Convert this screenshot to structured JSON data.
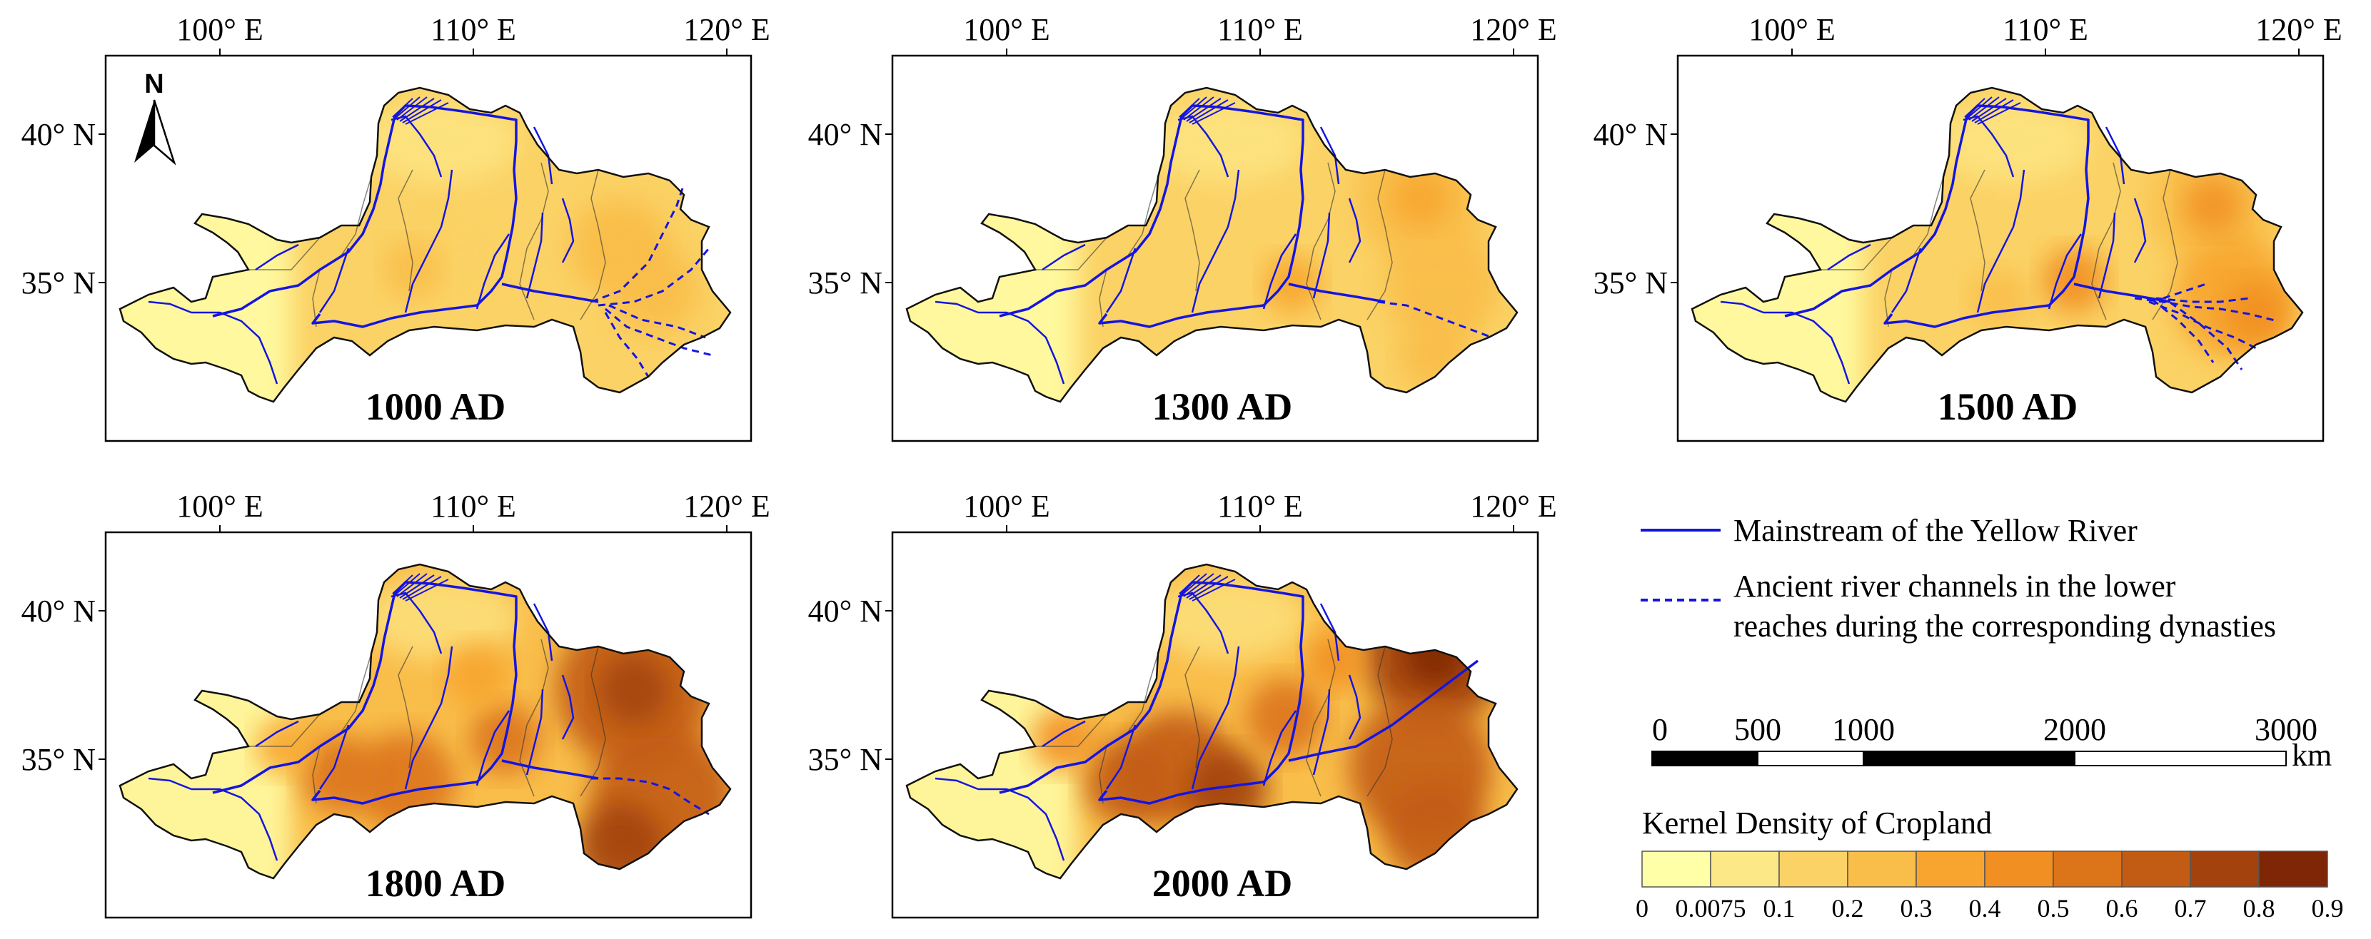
{
  "panels": [
    {
      "year": "1000 AD",
      "fill_level": 2,
      "hot_level": 3,
      "north_arrow": true,
      "ancient_channels": "multi-1000"
    },
    {
      "year": "1300 AD",
      "fill_level": 2,
      "hot_level": 4,
      "north_arrow": false,
      "ancient_channels": "single-1300"
    },
    {
      "year": "1500 AD",
      "fill_level": 2,
      "hot_level": 5,
      "north_arrow": false,
      "ancient_channels": "multi-1500"
    },
    {
      "year": "1800 AD",
      "fill_level": 3,
      "hot_level": 8,
      "north_arrow": false,
      "ancient_channels": "single-1800"
    },
    {
      "year": "2000 AD",
      "fill_level": 3,
      "hot_level": 9,
      "north_arrow": false,
      "ancient_channels": "none"
    }
  ],
  "axes": {
    "longitude_labels": [
      "100° E",
      "110° E",
      "120° E"
    ],
    "latitude_labels": [
      "40° N",
      "35° N"
    ],
    "north_label": "N"
  },
  "legend": {
    "mainstream_label": "Mainstream of the Yellow River",
    "ancient_label_line1": "Ancient river channels in the lower",
    "ancient_label_line2": "reaches during the corresponding dynasties",
    "river_color": "#1515e0"
  },
  "scale_bar": {
    "unit": "km",
    "ticks": [
      "0",
      "500",
      "1000",
      "2000",
      "3000"
    ]
  },
  "density_legend": {
    "title": "Kernel Density of Cropland",
    "ticks": [
      "0",
      "0.0075",
      "0.1",
      "0.2",
      "0.3",
      "0.4",
      "0.5",
      "0.6",
      "0.7",
      "0.8",
      "0.9"
    ],
    "colors": [
      "#ffffa8",
      "#fde888",
      "#fbd265",
      "#f9bd4a",
      "#f7a52e",
      "#f18f22",
      "#dc741a",
      "#c25c14",
      "#a3420d",
      "#7e2606"
    ]
  }
}
